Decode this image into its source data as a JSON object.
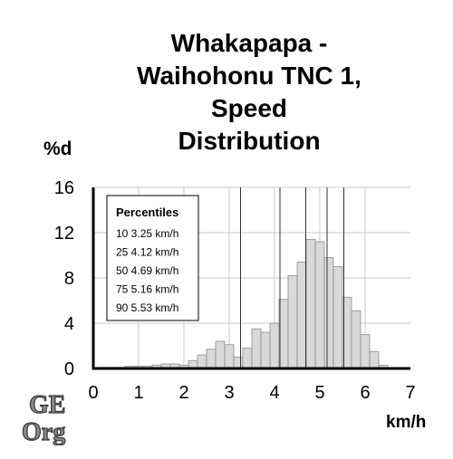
{
  "title_lines": [
    "Whakapapa -",
    "Waihohonu TNC 1,",
    "Speed",
    "Distribution"
  ],
  "logo": {
    "text_top": "GE",
    "text_bottom": "Org"
  },
  "colors": {
    "bar_fill": "#d9d9d9",
    "bar_stroke": "#8c8c8c",
    "grid": "#c8c8c8",
    "axis": "#000000",
    "percentile_line": "#333333"
  },
  "chart_data": {
    "type": "bar",
    "title": "Whakapapa - Waihohonu TNC 1, Speed Distribution",
    "ylabel": "%d",
    "xlabel": "km/h",
    "xlim": [
      0,
      7
    ],
    "ylim": [
      0,
      16
    ],
    "xticks": [
      "0",
      "1",
      "2",
      "3",
      "4",
      "5",
      "6",
      "7"
    ],
    "yticks": [
      "0",
      "4",
      "8",
      "12",
      "16"
    ],
    "grid": true,
    "bin_width": 0.2,
    "bins": [
      {
        "x": 0.2,
        "y": 0.1
      },
      {
        "x": 0.4,
        "y": 0.1
      },
      {
        "x": 0.6,
        "y": 0.1
      },
      {
        "x": 0.8,
        "y": 0.2
      },
      {
        "x": 1.0,
        "y": 0.2
      },
      {
        "x": 1.2,
        "y": 0.2
      },
      {
        "x": 1.4,
        "y": 0.3
      },
      {
        "x": 1.6,
        "y": 0.4
      },
      {
        "x": 1.8,
        "y": 0.4
      },
      {
        "x": 2.0,
        "y": 0.3
      },
      {
        "x": 2.2,
        "y": 0.7
      },
      {
        "x": 2.4,
        "y": 1.2
      },
      {
        "x": 2.6,
        "y": 1.7
      },
      {
        "x": 2.8,
        "y": 2.4
      },
      {
        "x": 3.0,
        "y": 2.1
      },
      {
        "x": 3.2,
        "y": 1.0
      },
      {
        "x": 3.4,
        "y": 1.8
      },
      {
        "x": 3.6,
        "y": 3.5
      },
      {
        "x": 3.8,
        "y": 3.2
      },
      {
        "x": 4.0,
        "y": 4.0
      },
      {
        "x": 4.2,
        "y": 6.1
      },
      {
        "x": 4.4,
        "y": 8.2
      },
      {
        "x": 4.6,
        "y": 9.4
      },
      {
        "x": 4.8,
        "y": 11.4
      },
      {
        "x": 5.0,
        "y": 11.2
      },
      {
        "x": 5.2,
        "y": 9.8
      },
      {
        "x": 5.4,
        "y": 9.0
      },
      {
        "x": 5.6,
        "y": 6.3
      },
      {
        "x": 5.8,
        "y": 5.1
      },
      {
        "x": 6.0,
        "y": 3.0
      },
      {
        "x": 6.2,
        "y": 1.5
      },
      {
        "x": 6.4,
        "y": 0.3
      }
    ],
    "percentiles_title": "Percentiles",
    "percentiles": [
      {
        "p": "10",
        "value": 3.25,
        "unit": "km/h"
      },
      {
        "p": "25",
        "value": 4.12,
        "unit": "km/h"
      },
      {
        "p": "50",
        "value": 4.69,
        "unit": "km/h"
      },
      {
        "p": "75",
        "value": 5.16,
        "unit": "km/h"
      },
      {
        "p": "90",
        "value": 5.53,
        "unit": "km/h"
      }
    ]
  }
}
